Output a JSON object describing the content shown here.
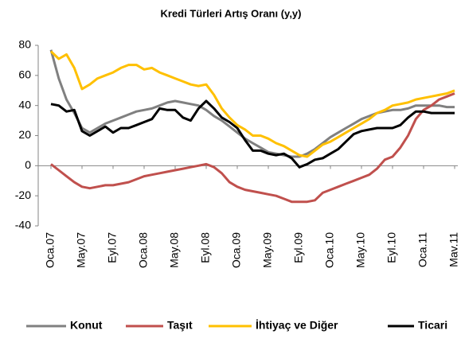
{
  "chart_data": {
    "type": "line",
    "title": "Kredi Türleri Artış Oranı (y,y)",
    "categories": [
      "Oca.07",
      null,
      null,
      null,
      "May.07",
      null,
      null,
      null,
      "Eyl.07",
      null,
      null,
      null,
      "Oca.08",
      null,
      null,
      null,
      "May.08",
      null,
      null,
      null,
      "Eyl.08",
      null,
      null,
      null,
      "Oca.09",
      null,
      null,
      null,
      "May.09",
      null,
      null,
      null,
      "Eyl.09",
      null,
      null,
      null,
      "Oca.10",
      null,
      null,
      null,
      "May.10",
      null,
      null,
      null,
      "Eyl.10",
      null,
      null,
      null,
      "Oca.11",
      null,
      null,
      null,
      "Mav.11"
    ],
    "series": [
      {
        "name": "Konut",
        "color": "#808080",
        "values": [
          77,
          58,
          44,
          35,
          25,
          22,
          25,
          28,
          30,
          32,
          34,
          36,
          37,
          38,
          40,
          42,
          43,
          42,
          41,
          40,
          37,
          33,
          30,
          26,
          22,
          18,
          15,
          12,
          9,
          8,
          7,
          6,
          6,
          8,
          11,
          15,
          19,
          22,
          25,
          28,
          31,
          33,
          35,
          36,
          37,
          37,
          38,
          40,
          40,
          40,
          40,
          39,
          39
        ]
      },
      {
        "name": "Taşıt",
        "color": "#c0504d",
        "values": [
          1,
          -3,
          -7,
          -11,
          -14,
          -15,
          -14,
          -13,
          -13,
          -12,
          -11,
          -9,
          -7,
          -6,
          -5,
          -4,
          -3,
          -2,
          -1,
          0,
          1,
          -1,
          -5,
          -11,
          -14,
          -16,
          -17,
          -18,
          -19,
          -20,
          -22,
          -24,
          -24,
          -24,
          -23,
          -18,
          -16,
          -14,
          -12,
          -10,
          -8,
          -6,
          -2,
          4,
          6,
          12,
          20,
          31,
          37,
          40,
          44,
          46,
          48
        ]
      },
      {
        "name": "İhtiyaç ve Diğer",
        "color": "#ffc000",
        "values": [
          76,
          71,
          74,
          65,
          51,
          54,
          58,
          60,
          62,
          65,
          67,
          67,
          64,
          65,
          62,
          60,
          58,
          56,
          54,
          53,
          54,
          47,
          38,
          32,
          27,
          24,
          20,
          20,
          18,
          15,
          13,
          10,
          7,
          6,
          10,
          14,
          16,
          19,
          22,
          25,
          28,
          31,
          35,
          37,
          40,
          41,
          42,
          44,
          45,
          46,
          47,
          48,
          50
        ]
      },
      {
        "name": "Ticari",
        "color": "#000000",
        "values": [
          41,
          40,
          36,
          37,
          23,
          20,
          23,
          26,
          22,
          25,
          25,
          27,
          29,
          31,
          38,
          37,
          37,
          32,
          30,
          38,
          43,
          38,
          32,
          29,
          25,
          17,
          10,
          10,
          8,
          7,
          8,
          5,
          -1,
          1,
          4,
          5,
          8,
          11,
          16,
          21,
          23,
          24,
          25,
          25,
          25,
          27,
          32,
          36,
          36,
          35,
          35,
          35,
          35
        ]
      }
    ],
    "ylim": [
      -40,
      80
    ],
    "yticks": [
      -40,
      -20,
      0,
      20,
      40,
      60,
      80
    ],
    "grid": false,
    "legend": "bottom"
  }
}
